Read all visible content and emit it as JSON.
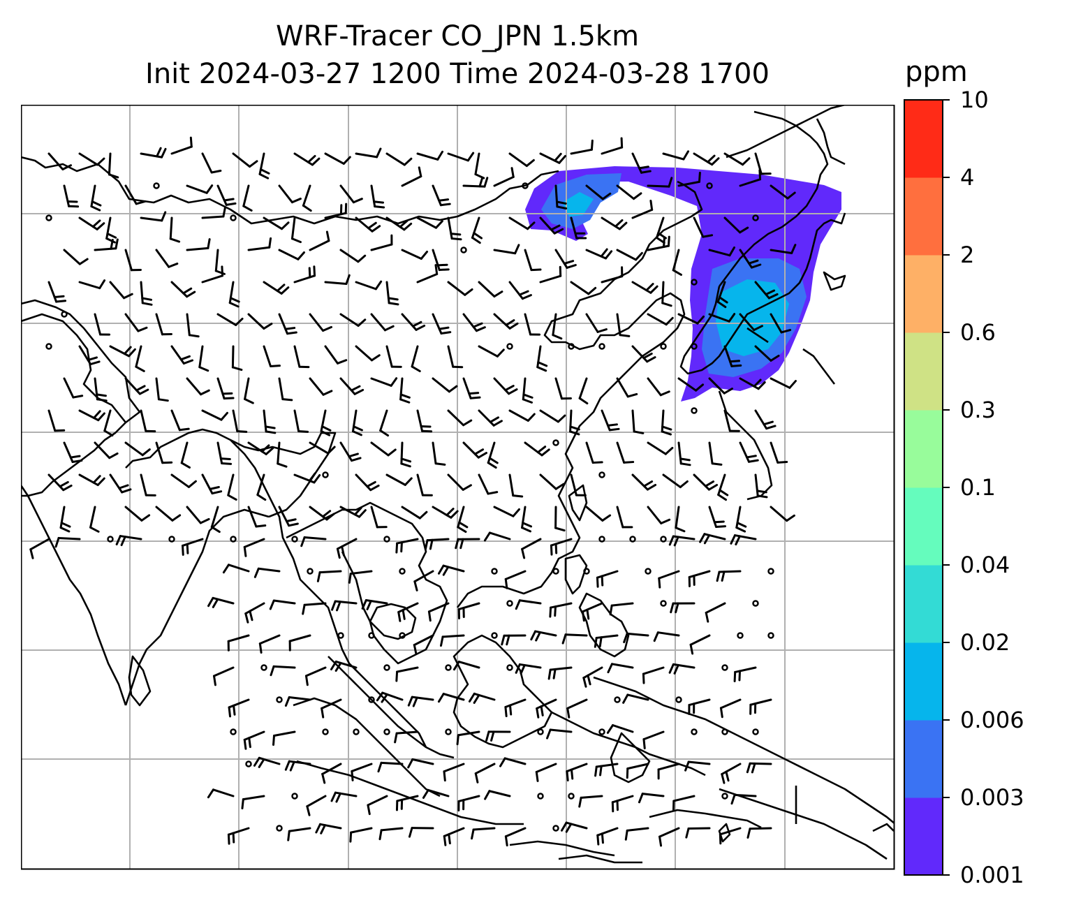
{
  "title": {
    "line1": "WRF-Tracer CO_JPN 1.5km",
    "line2": "Init 2024-03-27 1200 Time 2024-03-28 1700"
  },
  "colorbar": {
    "unit": "ppm",
    "levels": [
      "0.001",
      "0.003",
      "0.006",
      "0.02",
      "0.04",
      "0.1",
      "0.3",
      "0.6",
      "2",
      "4",
      "10"
    ],
    "colors": [
      "#6129fb",
      "#3a73f3",
      "#06b5ec",
      "#33dbd5",
      "#65fcbd",
      "#98fc9b",
      "#cfe285",
      "#feb066",
      "#ff6f3e",
      "#ff2b17"
    ]
  },
  "map": {
    "gridlines": true,
    "wind_barbs": true,
    "tracer_plume_colors": [
      "#6129fb",
      "#3a73f3",
      "#06b5ec"
    ]
  }
}
